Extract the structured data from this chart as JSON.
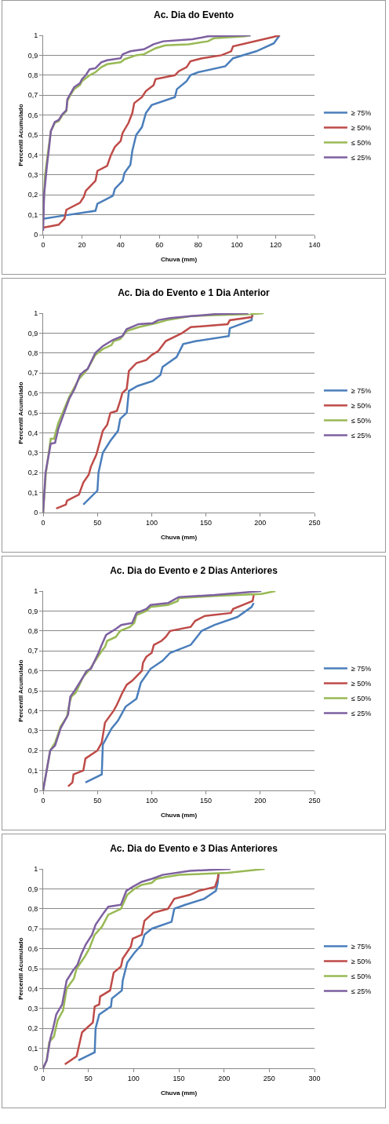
{
  "chart_data": [
    {
      "type": "line",
      "title": "Ac. Dia do Evento",
      "xlabel": "Chuva (mm)",
      "ylabel": "Percentil Acumulado",
      "xlim": [
        0,
        140
      ],
      "xticks": [
        0,
        20,
        40,
        60,
        80,
        100,
        120,
        140
      ],
      "ylim": [
        0,
        1
      ],
      "yticks": [
        {
          "value": 0,
          "label": "0"
        },
        {
          "value": 0.1,
          "label": "0,1"
        },
        {
          "value": 0.2,
          "label": "0,2"
        },
        {
          "value": 0.3,
          "label": "0,3"
        },
        {
          "value": 0.4,
          "label": "0,4"
        },
        {
          "value": 0.5,
          "label": "0,5"
        },
        {
          "value": 0.6,
          "label": "0,6"
        },
        {
          "value": 0.7,
          "label": "0,7"
        },
        {
          "value": 0.8,
          "label": "0,8"
        },
        {
          "value": 0.9,
          "label": "0,9"
        },
        {
          "value": 1,
          "label": "1"
        }
      ],
      "grid": "y",
      "legend": "right",
      "marker": "none",
      "line_style": "solid",
      "series": [
        {
          "name": "≥ 75%",
          "color": "#4a7ebb",
          "x": [
            0,
            10,
            27,
            28,
            36,
            37,
            41,
            42,
            45,
            46,
            48,
            51,
            53,
            56,
            68,
            69,
            74,
            76,
            80,
            94,
            98,
            110,
            119,
            122
          ],
          "values": [
            0.08,
            0.095,
            0.12,
            0.155,
            0.195,
            0.23,
            0.27,
            0.31,
            0.35,
            0.42,
            0.5,
            0.54,
            0.61,
            0.65,
            0.69,
            0.73,
            0.77,
            0.8,
            0.815,
            0.845,
            0.885,
            0.92,
            0.96,
            1
          ]
        },
        {
          "name": "≥ 50%",
          "color": "#be4b48",
          "x": [
            0,
            8,
            11,
            12,
            19,
            21,
            22,
            27,
            28,
            33,
            35,
            37,
            40,
            41,
            44,
            46,
            47,
            51,
            53,
            57,
            58,
            68,
            70,
            74,
            76,
            82,
            92,
            97,
            98,
            118,
            122
          ],
          "values": [
            0.035,
            0.05,
            0.08,
            0.125,
            0.16,
            0.19,
            0.22,
            0.27,
            0.32,
            0.345,
            0.4,
            0.44,
            0.47,
            0.51,
            0.56,
            0.61,
            0.66,
            0.69,
            0.72,
            0.75,
            0.78,
            0.8,
            0.82,
            0.84,
            0.87,
            0.885,
            0.9,
            0.92,
            0.945,
            0.99,
            1
          ]
        },
        {
          "name": "≤ 50%",
          "color": "#98b954",
          "x": [
            0,
            1,
            3,
            4,
            6,
            8,
            10,
            12,
            12.5,
            14,
            16,
            19,
            20,
            24,
            27,
            30,
            33,
            40,
            42,
            48,
            52,
            58,
            63,
            75,
            85,
            88,
            104,
            107
          ],
          "values": [
            0.1,
            0.3,
            0.45,
            0.52,
            0.56,
            0.57,
            0.6,
            0.62,
            0.67,
            0.7,
            0.73,
            0.75,
            0.77,
            0.8,
            0.815,
            0.84,
            0.855,
            0.865,
            0.88,
            0.9,
            0.905,
            0.935,
            0.95,
            0.955,
            0.97,
            0.985,
            0.995,
            1
          ]
        },
        {
          "name": "≤ 25%",
          "color": "#7d60a0",
          "x": [
            0,
            0.5,
            2,
            3,
            4,
            6,
            8,
            10,
            12,
            12.5,
            14,
            16,
            19,
            20,
            22,
            24,
            27,
            30,
            33,
            40,
            41,
            45,
            52,
            57,
            62,
            77,
            85,
            107
          ],
          "values": [
            0.02,
            0.2,
            0.35,
            0.43,
            0.52,
            0.565,
            0.575,
            0.605,
            0.625,
            0.68,
            0.705,
            0.74,
            0.76,
            0.78,
            0.8,
            0.83,
            0.835,
            0.865,
            0.875,
            0.885,
            0.905,
            0.92,
            0.93,
            0.955,
            0.97,
            0.98,
            0.995,
            1
          ]
        }
      ]
    },
    {
      "type": "line",
      "title": "Ac. Dia do Evento e 1 Dia Anterior",
      "xlabel": "Chuva (mm)",
      "ylabel": "Percentil Acumulado",
      "xlim": [
        0,
        250
      ],
      "xticks": [
        0,
        50,
        100,
        150,
        200,
        250
      ],
      "ylim": [
        0,
        1
      ],
      "yticks": [
        {
          "value": 0,
          "label": "0"
        },
        {
          "value": 0.1,
          "label": "0,1"
        },
        {
          "value": 0.2,
          "label": "0,2"
        },
        {
          "value": 0.3,
          "label": "0,3"
        },
        {
          "value": 0.4,
          "label": "0,4"
        },
        {
          "value": 0.5,
          "label": "0,5"
        },
        {
          "value": 0.6,
          "label": "0,6"
        },
        {
          "value": 0.7,
          "label": "0,7"
        },
        {
          "value": 0.8,
          "label": "0,8"
        },
        {
          "value": 0.9,
          "label": "0,9"
        },
        {
          "value": 1,
          "label": "1"
        }
      ],
      "grid": "y",
      "legend": "right",
      "marker": "none",
      "line_style": "solid",
      "series": [
        {
          "name": "≥ 75%",
          "color": "#4a7ebb",
          "x": [
            37,
            50,
            51,
            55,
            62,
            69,
            71,
            77,
            79,
            87,
            101,
            108,
            110,
            123,
            129,
            141,
            171,
            172,
            192,
            193
          ],
          "values": [
            0.04,
            0.11,
            0.2,
            0.3,
            0.36,
            0.41,
            0.47,
            0.5,
            0.61,
            0.635,
            0.66,
            0.69,
            0.73,
            0.78,
            0.845,
            0.86,
            0.885,
            0.925,
            0.965,
            1
          ]
        },
        {
          "name": "≥ 50%",
          "color": "#be4b48",
          "x": [
            12,
            21,
            22,
            33,
            37,
            42,
            44,
            49,
            52,
            55,
            59,
            62,
            68,
            71,
            73,
            77,
            79,
            86,
            95,
            100,
            106,
            113,
            128,
            136,
            170,
            172,
            192,
            193
          ],
          "values": [
            0.02,
            0.04,
            0.06,
            0.09,
            0.15,
            0.19,
            0.23,
            0.29,
            0.35,
            0.41,
            0.44,
            0.5,
            0.51,
            0.56,
            0.6,
            0.62,
            0.71,
            0.75,
            0.765,
            0.79,
            0.81,
            0.86,
            0.9,
            0.93,
            0.945,
            0.965,
            0.98,
            0.99
          ]
        },
        {
          "name": "≤ 50%",
          "color": "#98b954",
          "x": [
            0,
            2.6,
            7,
            10,
            14,
            18,
            24,
            33,
            38,
            41,
            48,
            55,
            63,
            65,
            71,
            77,
            88,
            104,
            114,
            136,
            158,
            191,
            203
          ],
          "values": [
            0,
            0.2,
            0.37,
            0.37,
            0.45,
            0.5,
            0.58,
            0.67,
            0.7,
            0.72,
            0.79,
            0.82,
            0.84,
            0.86,
            0.87,
            0.91,
            0.93,
            0.95,
            0.965,
            0.985,
            0.99,
            0.995,
            1
          ]
        },
        {
          "name": "≤ 25%",
          "color": "#7d60a0",
          "x": [
            0,
            2.2,
            7,
            11,
            14,
            18,
            24,
            29,
            34,
            38,
            41,
            48,
            55,
            64,
            73,
            77,
            88,
            101,
            106,
            117,
            136,
            158,
            189
          ],
          "values": [
            0,
            0.2,
            0.345,
            0.35,
            0.42,
            0.48,
            0.57,
            0.62,
            0.69,
            0.71,
            0.72,
            0.8,
            0.835,
            0.865,
            0.885,
            0.92,
            0.945,
            0.95,
            0.965,
            0.975,
            0.985,
            0.995,
            1
          ]
        }
      ]
    },
    {
      "type": "line",
      "title": "Ac. Dia do Evento e 2 Dias Anteriores",
      "xlabel": "Chuva (mm)",
      "ylabel": "Percentil Acumulado",
      "xlim": [
        0,
        250
      ],
      "xticks": [
        0,
        50,
        100,
        150,
        200,
        250
      ],
      "ylim": [
        0,
        1
      ],
      "yticks": [
        {
          "value": 0,
          "label": "0"
        },
        {
          "value": 0.1,
          "label": "0,1"
        },
        {
          "value": 0.2,
          "label": "0,2"
        },
        {
          "value": 0.3,
          "label": "0,3"
        },
        {
          "value": 0.4,
          "label": "0,4"
        },
        {
          "value": 0.5,
          "label": "0,5"
        },
        {
          "value": 0.6,
          "label": "0,6"
        },
        {
          "value": 0.7,
          "label": "0,7"
        },
        {
          "value": 0.8,
          "label": "0,8"
        },
        {
          "value": 0.9,
          "label": "0,9"
        },
        {
          "value": 1,
          "label": "1"
        }
      ],
      "grid": "y",
      "legend": "right",
      "marker": "none",
      "line_style": "solid",
      "series": [
        {
          "name": "≥ 75%",
          "color": "#4a7ebb",
          "x": [
            39,
            54,
            55,
            59,
            63,
            69,
            76,
            86,
            90,
            99,
            110,
            117,
            136,
            146,
            158,
            179,
            192,
            194
          ],
          "values": [
            0.04,
            0.08,
            0.23,
            0.27,
            0.31,
            0.35,
            0.42,
            0.46,
            0.54,
            0.61,
            0.65,
            0.69,
            0.73,
            0.8,
            0.83,
            0.87,
            0.92,
            0.94
          ]
        },
        {
          "name": "≥ 50%",
          "color": "#be4b48",
          "x": [
            23,
            27,
            28,
            37,
            39,
            50,
            54,
            57,
            65,
            68,
            73,
            77,
            82,
            91,
            92,
            95,
            100,
            102,
            109,
            113,
            117,
            136,
            140,
            149,
            173,
            175,
            193,
            194
          ],
          "values": [
            0.02,
            0.04,
            0.08,
            0.1,
            0.16,
            0.2,
            0.24,
            0.34,
            0.4,
            0.43,
            0.49,
            0.53,
            0.55,
            0.6,
            0.64,
            0.67,
            0.69,
            0.73,
            0.75,
            0.77,
            0.8,
            0.82,
            0.85,
            0.875,
            0.89,
            0.91,
            0.95,
            0.98
          ]
        },
        {
          "name": "≤ 50%",
          "color": "#98b954",
          "x": [
            0,
            6.5,
            11,
            13,
            16,
            22,
            24,
            26,
            30,
            37,
            42,
            48,
            54,
            57,
            59,
            67,
            71,
            80,
            84,
            86,
            95,
            99,
            115,
            124,
            125,
            158,
            201,
            214
          ],
          "values": [
            0,
            0.2,
            0.24,
            0.27,
            0.32,
            0.37,
            0.43,
            0.47,
            0.49,
            0.57,
            0.6,
            0.65,
            0.7,
            0.72,
            0.75,
            0.77,
            0.8,
            0.82,
            0.84,
            0.88,
            0.9,
            0.92,
            0.93,
            0.95,
            0.965,
            0.975,
            0.985,
            1
          ]
        },
        {
          "name": "≤ 25%",
          "color": "#7d60a0",
          "x": [
            0,
            6.5,
            11,
            16,
            23,
            25,
            29,
            37,
            40,
            44,
            51,
            54,
            58,
            67,
            72,
            82,
            86,
            95,
            99,
            115,
            125,
            158,
            201
          ],
          "values": [
            0,
            0.2,
            0.225,
            0.31,
            0.38,
            0.47,
            0.5,
            0.57,
            0.6,
            0.61,
            0.69,
            0.73,
            0.78,
            0.81,
            0.83,
            0.84,
            0.89,
            0.91,
            0.93,
            0.94,
            0.97,
            0.98,
            1
          ]
        }
      ]
    },
    {
      "type": "line",
      "title": "Ac. Dia do Evento e 3 Dias Anteriores",
      "xlabel": "Chuva (mm)",
      "ylabel": "Percentil Acumulado",
      "xlim": [
        0,
        300
      ],
      "xticks": [
        0,
        50,
        100,
        150,
        200,
        250,
        300
      ],
      "ylim": [
        0,
        1
      ],
      "yticks": [
        {
          "value": 0,
          "label": "0"
        },
        {
          "value": 0.1,
          "label": "0,1"
        },
        {
          "value": 0.2,
          "label": "0,2"
        },
        {
          "value": 0.3,
          "label": "0,3"
        },
        {
          "value": 0.4,
          "label": "0,4"
        },
        {
          "value": 0.5,
          "label": "0,5"
        },
        {
          "value": 0.6,
          "label": "0,6"
        },
        {
          "value": 0.7,
          "label": "0,7"
        },
        {
          "value": 0.8,
          "label": "0,8"
        },
        {
          "value": 0.9,
          "label": "0,9"
        },
        {
          "value": 1,
          "label": "1"
        }
      ],
      "grid": "y",
      "legend": "right",
      "marker": "none",
      "line_style": "solid",
      "series": [
        {
          "name": "≥ 75%",
          "color": "#4a7ebb",
          "x": [
            39,
            57,
            58,
            62,
            75,
            76,
            87,
            88,
            93,
            101,
            109,
            112,
            120,
            142,
            145,
            157,
            178,
            191,
            193,
            194
          ],
          "values": [
            0.04,
            0.08,
            0.2,
            0.27,
            0.31,
            0.35,
            0.39,
            0.44,
            0.53,
            0.58,
            0.62,
            0.67,
            0.7,
            0.735,
            0.8,
            0.82,
            0.85,
            0.89,
            0.93,
            0.98
          ]
        },
        {
          "name": "≥ 50%",
          "color": "#be4b48",
          "x": [
            24,
            37,
            43,
            55,
            57,
            62,
            63,
            74,
            78,
            86,
            88,
            97,
            99,
            109,
            112,
            122,
            138,
            145,
            162,
            172,
            190,
            193,
            194
          ],
          "values": [
            0.02,
            0.06,
            0.18,
            0.23,
            0.31,
            0.32,
            0.36,
            0.39,
            0.48,
            0.51,
            0.55,
            0.61,
            0.65,
            0.67,
            0.74,
            0.78,
            0.8,
            0.85,
            0.87,
            0.89,
            0.91,
            0.95,
            0.98
          ]
        },
        {
          "name": "≤ 50%",
          "color": "#98b954",
          "x": [
            0,
            4,
            6.6,
            12,
            16,
            22,
            26,
            34,
            37,
            46,
            51,
            57,
            65,
            72,
            86,
            93,
            101,
            109,
            120,
            125,
            136,
            151,
            204,
            245
          ],
          "values": [
            0,
            0.04,
            0.13,
            0.16,
            0.24,
            0.29,
            0.4,
            0.45,
            0.5,
            0.56,
            0.6,
            0.67,
            0.71,
            0.77,
            0.8,
            0.87,
            0.9,
            0.92,
            0.93,
            0.95,
            0.96,
            0.97,
            0.98,
            1
          ]
        },
        {
          "name": "≤ 25%",
          "color": "#7d60a0",
          "x": [
            0,
            4,
            8,
            10.5,
            14.5,
            21,
            26,
            33,
            38,
            42,
            47,
            54,
            58,
            67,
            72,
            86,
            92,
            99,
            109,
            120,
            132,
            162,
            207
          ],
          "values": [
            0,
            0.04,
            0.15,
            0.19,
            0.27,
            0.32,
            0.44,
            0.49,
            0.52,
            0.57,
            0.62,
            0.67,
            0.72,
            0.78,
            0.81,
            0.82,
            0.89,
            0.91,
            0.935,
            0.95,
            0.97,
            0.99,
            1
          ]
        }
      ]
    }
  ]
}
